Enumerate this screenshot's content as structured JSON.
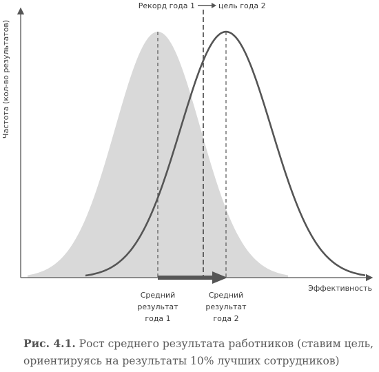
{
  "diagram": {
    "top_label_left": "Рекорд года 1",
    "top_label_right": "цель года 2",
    "y_axis_label": "Частота (кол-во результатов)",
    "x_axis_label": "Эффективность",
    "mean1_label": [
      "Средний",
      "результат",
      "года 1"
    ],
    "mean2_label": [
      "Средний",
      "результат",
      "года 2"
    ]
  },
  "caption": {
    "figure_number": "Рис. 4.1.",
    "text_line1": " Рост среднего результата работников (ставим цель,",
    "text_line2": "ориентируясь на результаты 10% лучших сотрудников)"
  },
  "colors": {
    "fill_curve": "#d9d9d9",
    "line": "#555555",
    "text": "#3a3a3a"
  }
}
